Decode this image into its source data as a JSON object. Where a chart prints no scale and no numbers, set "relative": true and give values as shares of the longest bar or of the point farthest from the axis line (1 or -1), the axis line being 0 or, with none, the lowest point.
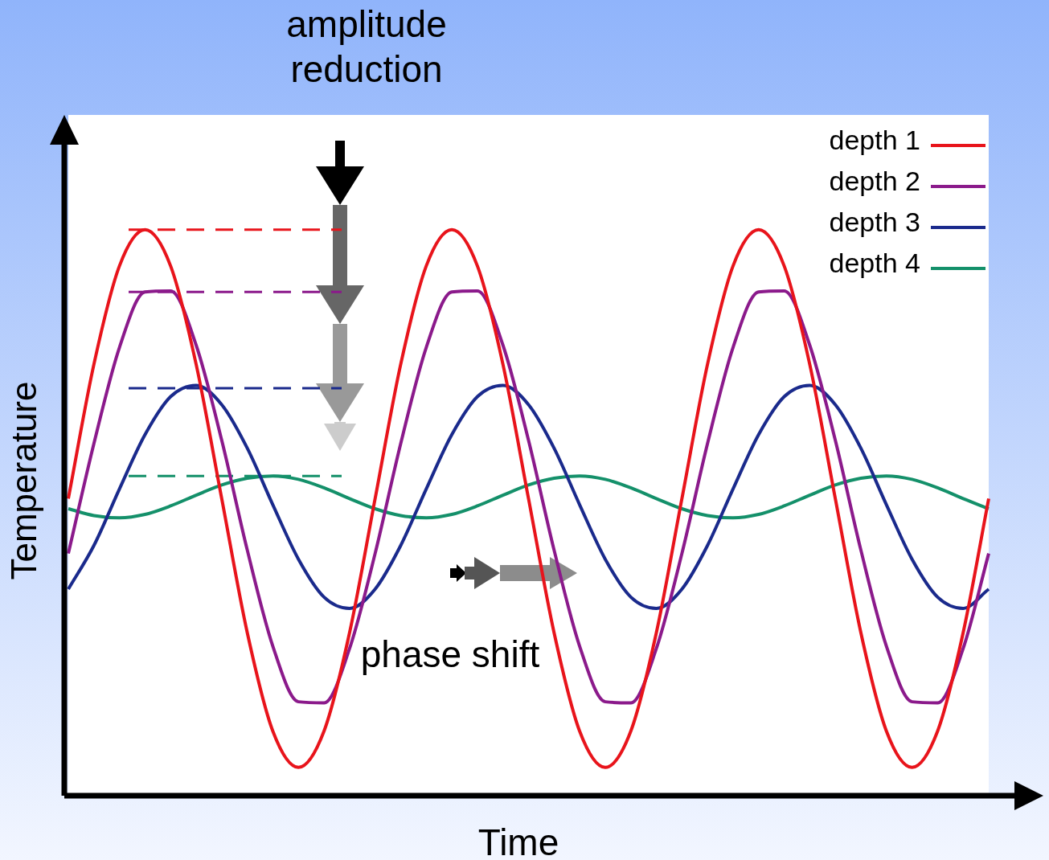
{
  "chart_data": {
    "type": "line",
    "relative": true,
    "xlabel": "Time",
    "ylabel": "Temperature",
    "legend": "top right",
    "marker": "none",
    "annotations": [
      "amplitude reduction",
      "phase shift"
    ],
    "categories": [
      null,
      null,
      null,
      null,
      null,
      null,
      null,
      null,
      null,
      null,
      null,
      null,
      null,
      null,
      null,
      null,
      null,
      null,
      null,
      null,
      null,
      null,
      null,
      null,
      null,
      null,
      null,
      null,
      null,
      null,
      null,
      null,
      null,
      null,
      null,
      null,
      null
    ],
    "ref_lines": [
      {
        "axis": "y",
        "value": 1.0,
        "color": "#e8141b",
        "line_style": "dashed"
      },
      {
        "axis": "y",
        "value": 0.89,
        "color": "#8b1a8b",
        "line_style": "dashed"
      },
      {
        "axis": "y",
        "value": 0.72,
        "color": "#1a2a8c",
        "line_style": "dashed"
      },
      {
        "axis": "y",
        "value": 0.565,
        "color": "#14906a",
        "line_style": "dashed"
      }
    ],
    "series": [
      {
        "name": "depth 1",
        "color": "#e8141b",
        "values": [
          0.525,
          0.762,
          0.936,
          1.0,
          0.936,
          0.762,
          0.525,
          0.288,
          0.114,
          0.05,
          0.114,
          0.288,
          0.525,
          0.762,
          0.936,
          1.0,
          0.936,
          0.762,
          0.525,
          0.288,
          0.114,
          0.05,
          0.114,
          0.288,
          0.525,
          0.762,
          0.936,
          1.0,
          0.936,
          0.762,
          0.525,
          0.288,
          0.114,
          0.05,
          0.114,
          0.288,
          0.525
        ]
      },
      {
        "name": "depth 2",
        "color": "#8b1a8b",
        "values": [
          0.428,
          0.622,
          0.792,
          0.89,
          0.892,
          0.796,
          0.628,
          0.434,
          0.264,
          0.166,
          0.164,
          0.26,
          0.428,
          0.622,
          0.792,
          0.89,
          0.892,
          0.796,
          0.628,
          0.434,
          0.264,
          0.166,
          0.164,
          0.26,
          0.428,
          0.622,
          0.792,
          0.89,
          0.892,
          0.796,
          0.628,
          0.434,
          0.264,
          0.166,
          0.164,
          0.26,
          0.428
        ]
      },
      {
        "name": "depth 3",
        "color": "#1a2a8c",
        "values": [
          0.365,
          0.442,
          0.542,
          0.638,
          0.705,
          0.725,
          0.691,
          0.614,
          0.514,
          0.418,
          0.351,
          0.331,
          0.365,
          0.442,
          0.542,
          0.638,
          0.705,
          0.725,
          0.691,
          0.614,
          0.514,
          0.418,
          0.351,
          0.331,
          0.365,
          0.442,
          0.542,
          0.638,
          0.705,
          0.725,
          0.691,
          0.614,
          0.514,
          0.418,
          0.351,
          0.331,
          0.365
        ]
      },
      {
        "name": "depth 4",
        "color": "#14906a",
        "values": [
          0.507,
          0.495,
          0.491,
          0.497,
          0.512,
          0.531,
          0.549,
          0.561,
          0.565,
          0.559,
          0.544,
          0.525,
          0.507,
          0.495,
          0.491,
          0.497,
          0.512,
          0.531,
          0.549,
          0.561,
          0.565,
          0.559,
          0.544,
          0.525,
          0.507,
          0.495,
          0.491,
          0.497,
          0.512,
          0.531,
          0.549,
          0.561,
          0.565,
          0.559,
          0.544,
          0.525,
          0.507
        ]
      }
    ]
  }
}
